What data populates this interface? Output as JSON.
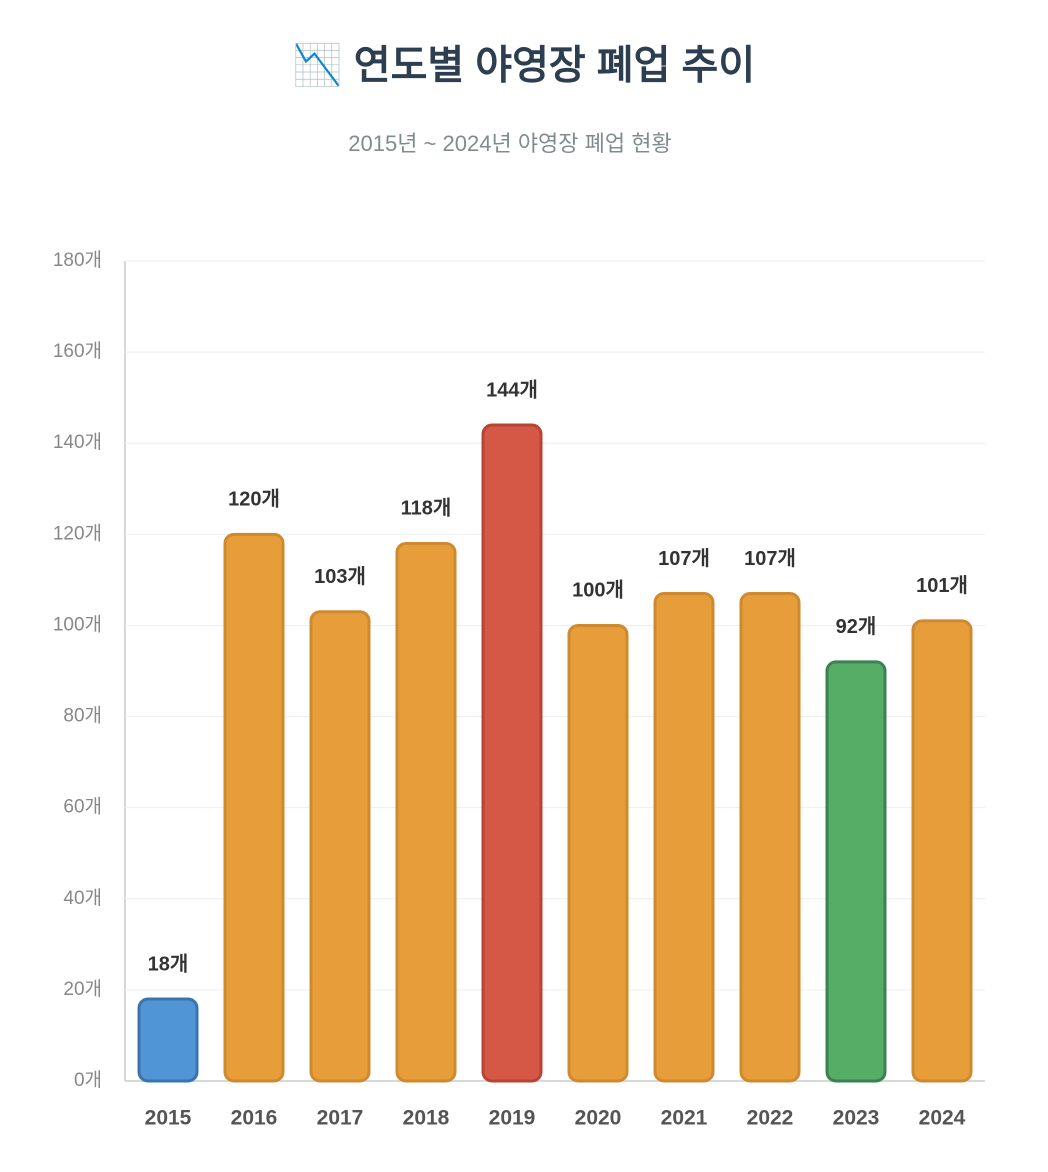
{
  "chart_data": {
    "type": "bar",
    "title": "📉 연도별 야영장 폐업 추이",
    "subtitle": "2015년 ~ 2024년 야영장 폐업 현황",
    "categories": [
      "2015",
      "2016",
      "2017",
      "2018",
      "2019",
      "2020",
      "2021",
      "2022",
      "2023",
      "2024"
    ],
    "values": [
      18,
      120,
      103,
      118,
      144,
      100,
      107,
      107,
      92,
      101
    ],
    "value_labels": [
      "18개",
      "120개",
      "103개",
      "118개",
      "144개",
      "100개",
      "107개",
      "107개",
      "92개",
      "101개"
    ],
    "colors": [
      "#5096d6",
      "#e79d3a",
      "#e79d3a",
      "#e79d3a",
      "#d55745",
      "#e79d3a",
      "#e79d3a",
      "#e79d3a",
      "#55ad66",
      "#e79d3a"
    ],
    "border_colors": [
      "#3b74ac",
      "#cf8a2f",
      "#cf8a2f",
      "#cf8a2f",
      "#b84434",
      "#cf8a2f",
      "#cf8a2f",
      "#cf8a2f",
      "#3c8150",
      "#cf8a2f"
    ],
    "ylim": [
      0,
      180
    ],
    "yticks": [
      {
        "value": 0,
        "label": "0개"
      },
      {
        "value": 20,
        "label": "20개"
      },
      {
        "value": 40,
        "label": "40개"
      },
      {
        "value": 60,
        "label": "60개"
      },
      {
        "value": 80,
        "label": "80개"
      },
      {
        "value": 100,
        "label": "100개"
      },
      {
        "value": 120,
        "label": "120개"
      },
      {
        "value": 140,
        "label": "140개"
      },
      {
        "value": 160,
        "label": "160개"
      },
      {
        "value": 180,
        "label": "180개"
      }
    ],
    "grid": true
  }
}
